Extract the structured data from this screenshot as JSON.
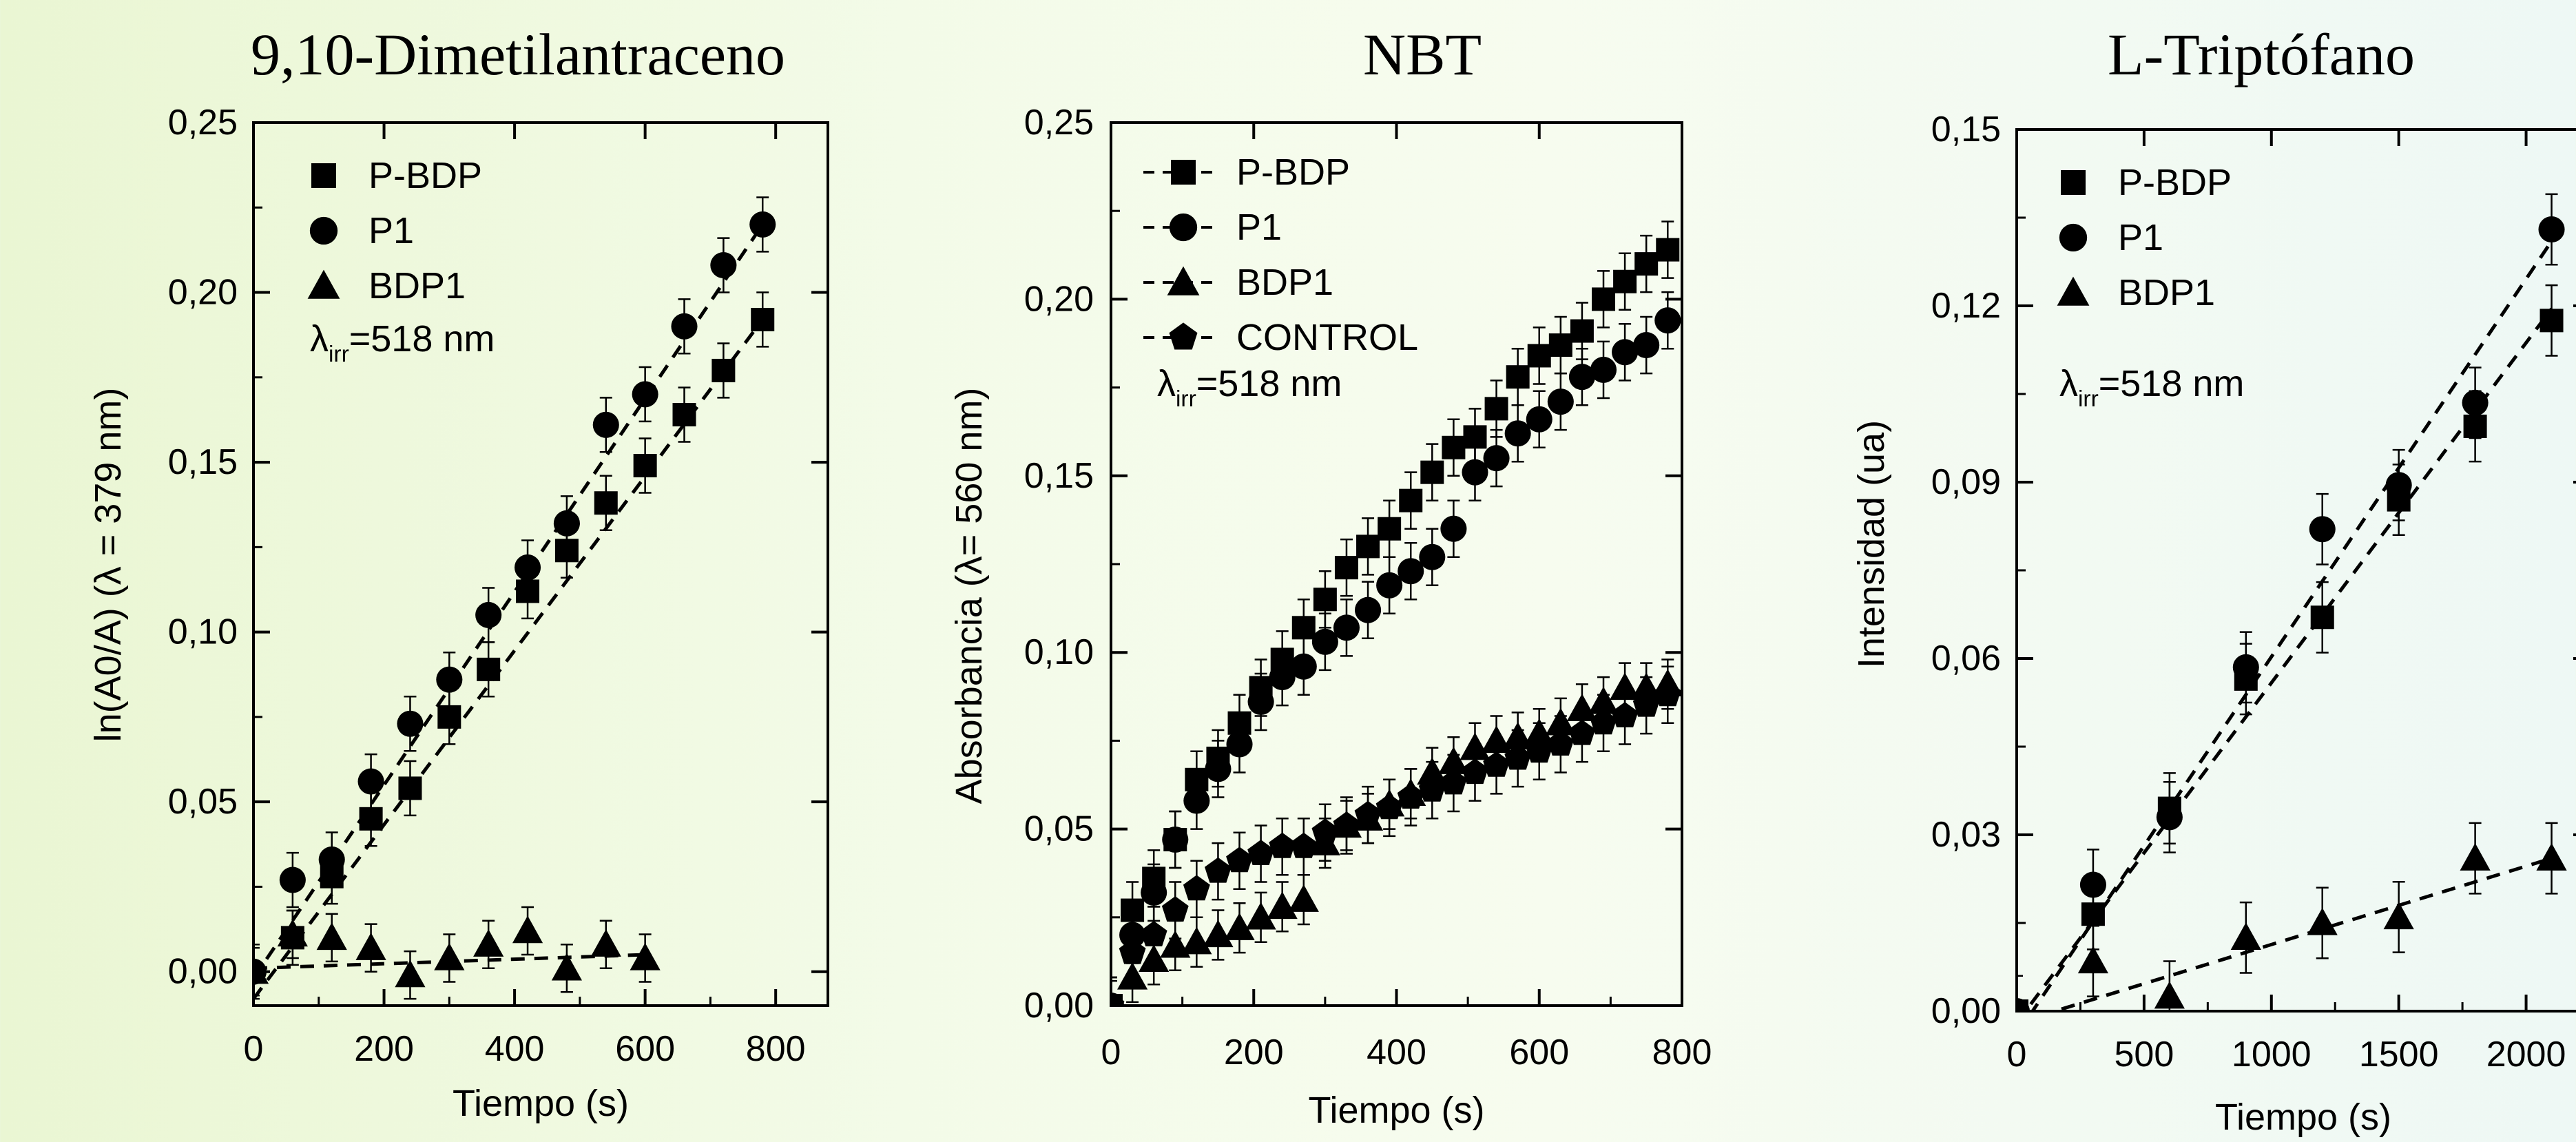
{
  "chart_data": [
    {
      "type": "scatter",
      "title": "9,10-Dimetilantraceno",
      "xlabel": "Tiempo (s)",
      "ylabel": "ln(A0/A) (λ = 379 nm)",
      "xlim": [
        0,
        880
      ],
      "ylim": [
        -0.01,
        0.25
      ],
      "x_ticks": [
        "0",
        "200",
        "400",
        "600",
        "800"
      ],
      "y_ticks": [
        "0,00",
        "0,05",
        "0,10",
        "0,15",
        "0,20",
        "0,25"
      ],
      "annotation": "λirr=518 nm",
      "legend_position": "top-left",
      "series": [
        {
          "name": "P-BDP",
          "marker": "square",
          "x": [
            60,
            120,
            180,
            240,
            300,
            360,
            420,
            480,
            540,
            600,
            660,
            720,
            780
          ],
          "y": [
            0.01,
            0.028,
            0.045,
            0.054,
            0.075,
            0.089,
            0.112,
            0.124,
            0.138,
            0.149,
            0.164,
            0.177,
            0.192
          ],
          "error": 0.008,
          "fit": [
            [
              0,
              -0.008
            ],
            [
              780,
              0.192
            ]
          ]
        },
        {
          "name": "P1",
          "marker": "circle",
          "x": [
            0,
            60,
            120,
            180,
            240,
            300,
            360,
            420,
            480,
            540,
            600,
            660,
            720,
            780
          ],
          "y": [
            0.0,
            0.027,
            0.033,
            0.056,
            0.073,
            0.086,
            0.105,
            0.119,
            0.132,
            0.161,
            0.17,
            0.19,
            0.208,
            0.22
          ],
          "error": 0.008,
          "fit": [
            [
              0,
              -0.002
            ],
            [
              780,
              0.22
            ]
          ]
        },
        {
          "name": "BDP1",
          "marker": "triangle",
          "x": [
            0,
            60,
            120,
            180,
            240,
            300,
            360,
            420,
            480,
            540,
            600
          ],
          "y": [
            0.0,
            0.011,
            0.01,
            0.007,
            -0.001,
            0.004,
            0.008,
            0.012,
            0.001,
            0.008,
            0.004
          ],
          "error": 0.007,
          "fit": [
            [
              0,
              0.001
            ],
            [
              600,
              0.005
            ]
          ]
        }
      ]
    },
    {
      "type": "scatter",
      "title": "NBT",
      "xlabel": "Tiempo (s)",
      "ylabel": "Absorbancia (λ= 560 nm)",
      "xlim": [
        0,
        800
      ],
      "ylim": [
        0,
        0.25
      ],
      "x_ticks": [
        "0",
        "200",
        "400",
        "600",
        "800"
      ],
      "y_ticks": [
        "0,00",
        "0,05",
        "0,10",
        "0,15",
        "0,20",
        "0,25"
      ],
      "annotation": "λirr=518 nm",
      "legend_position": "top-left",
      "series": [
        {
          "name": "P-BDP",
          "marker": "square",
          "x": [
            0,
            30,
            60,
            90,
            120,
            150,
            180,
            210,
            240,
            270,
            300,
            330,
            360,
            390,
            420,
            450,
            480,
            510,
            540,
            570,
            600,
            630,
            660,
            690,
            720,
            750,
            780
          ],
          "y": [
            0.0,
            0.027,
            0.036,
            0.047,
            0.064,
            0.07,
            0.08,
            0.09,
            0.098,
            0.107,
            0.115,
            0.124,
            0.13,
            0.135,
            0.143,
            0.151,
            0.158,
            0.161,
            0.169,
            0.178,
            0.184,
            0.187,
            0.191,
            0.2,
            0.205,
            0.21,
            0.214
          ],
          "error": 0.008
        },
        {
          "name": "P1",
          "marker": "circle",
          "x": [
            0,
            30,
            60,
            90,
            120,
            150,
            180,
            210,
            240,
            270,
            300,
            330,
            360,
            390,
            420,
            450,
            480,
            510,
            540,
            570,
            600,
            630,
            660,
            690,
            720,
            750,
            780
          ],
          "y": [
            0.0,
            0.02,
            0.032,
            0.047,
            0.058,
            0.067,
            0.074,
            0.086,
            0.093,
            0.096,
            0.103,
            0.107,
            0.112,
            0.119,
            0.123,
            0.127,
            0.135,
            0.151,
            0.155,
            0.162,
            0.166,
            0.171,
            0.178,
            0.18,
            0.185,
            0.187,
            0.194
          ],
          "error": 0.008
        },
        {
          "name": "BDP1",
          "marker": "triangle",
          "x": [
            0,
            30,
            60,
            90,
            120,
            150,
            180,
            210,
            240,
            270,
            300,
            330,
            360,
            390,
            420,
            450,
            480,
            510,
            540,
            570,
            600,
            630,
            660,
            690,
            720,
            750,
            780
          ],
          "y": [
            0.0,
            0.008,
            0.013,
            0.017,
            0.018,
            0.02,
            0.022,
            0.025,
            0.028,
            0.03,
            0.046,
            0.051,
            0.053,
            0.057,
            0.06,
            0.066,
            0.069,
            0.073,
            0.075,
            0.076,
            0.077,
            0.08,
            0.084,
            0.086,
            0.09,
            0.09,
            0.091
          ],
          "error": 0.007
        },
        {
          "name": "CONTROL",
          "marker": "pentagon",
          "x": [
            0,
            30,
            60,
            90,
            120,
            150,
            180,
            210,
            240,
            270,
            300,
            330,
            360,
            390,
            420,
            450,
            480,
            510,
            540,
            570,
            600,
            630,
            660,
            690,
            720,
            750,
            780
          ],
          "y": [
            0.0,
            0.015,
            0.02,
            0.027,
            0.033,
            0.038,
            0.041,
            0.043,
            0.045,
            0.045,
            0.049,
            0.051,
            0.054,
            0.056,
            0.059,
            0.061,
            0.063,
            0.066,
            0.068,
            0.07,
            0.072,
            0.074,
            0.077,
            0.08,
            0.082,
            0.085,
            0.088
          ],
          "error": 0.008
        }
      ]
    },
    {
      "type": "scatter",
      "title": "L-Triptófano",
      "xlabel": "Tiempo (s)",
      "ylabel": "Intensidad (ua)",
      "xlim": [
        0,
        2250
      ],
      "ylim": [
        0,
        0.15
      ],
      "x_ticks": [
        "0",
        "500",
        "1000",
        "1500",
        "2000"
      ],
      "y_ticks": [
        "0,00",
        "0,03",
        "0,06",
        "0,09",
        "0,12",
        "0,15"
      ],
      "annotation": "λirr=518 nm",
      "legend_position": "top-left",
      "series": [
        {
          "name": "P-BDP",
          "marker": "square",
          "x": [
            0,
            300,
            600,
            900,
            1200,
            1500,
            1800,
            2100
          ],
          "y": [
            0.0,
            0.0165,
            0.0345,
            0.0565,
            0.067,
            0.087,
            0.0995,
            0.1175
          ],
          "error": 0.006,
          "fit": [
            [
              0,
              -0.002
            ],
            [
              2100,
              0.1195
            ]
          ]
        },
        {
          "name": "P1",
          "marker": "circle",
          "x": [
            0,
            300,
            600,
            900,
            1200,
            1500,
            1800,
            2100
          ],
          "y": [
            0.0,
            0.0215,
            0.033,
            0.0585,
            0.082,
            0.0895,
            0.1035,
            0.133
          ],
          "error": 0.006,
          "fit": [
            [
              0,
              -0.004
            ],
            [
              2100,
              0.131
            ]
          ]
        },
        {
          "name": "BDP1",
          "marker": "triangle",
          "x": [
            0,
            300,
            600,
            900,
            1200,
            1500,
            1800,
            2100
          ],
          "y": [
            0.0,
            0.0085,
            0.0025,
            0.0125,
            0.015,
            0.016,
            0.026,
            0.026
          ],
          "error": 0.006,
          "fit": [
            [
              0,
              -0.002
            ],
            [
              2100,
              0.026
            ]
          ]
        }
      ]
    }
  ]
}
